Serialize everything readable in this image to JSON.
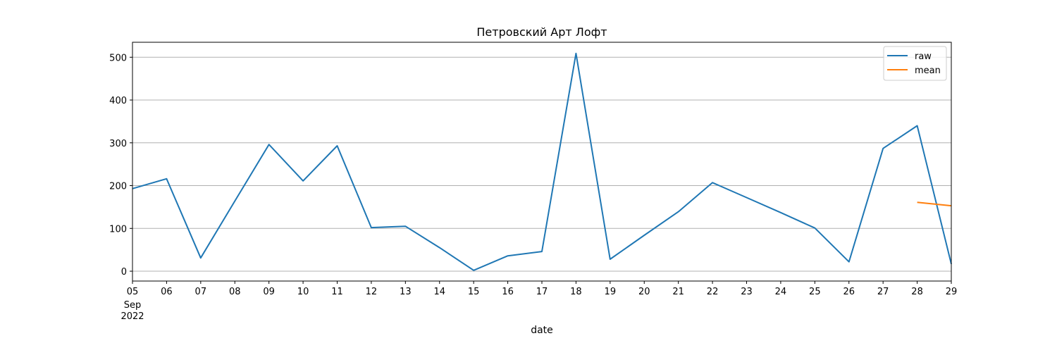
{
  "chart_data": {
    "type": "line",
    "title": "Петровский Арт Лофт",
    "xlabel": "date",
    "ylabel": "",
    "x": [
      "2022-09-05",
      "2022-09-06",
      "2022-09-07",
      "2022-09-08",
      "2022-09-09",
      "2022-09-10",
      "2022-09-11",
      "2022-09-12",
      "2022-09-13",
      "2022-09-14",
      "2022-09-15",
      "2022-09-16",
      "2022-09-17",
      "2022-09-18",
      "2022-09-19",
      "2022-09-20",
      "2022-09-21",
      "2022-09-22",
      "2022-09-23",
      "2022-09-24",
      "2022-09-25",
      "2022-09-26",
      "2022-09-27",
      "2022-09-28",
      "2022-09-29"
    ],
    "x_tick_labels": [
      "05",
      "06",
      "07",
      "08",
      "09",
      "10",
      "11",
      "12",
      "13",
      "14",
      "15",
      "16",
      "17",
      "18",
      "19",
      "20",
      "21",
      "22",
      "23",
      "24",
      "25",
      "26",
      "27",
      "28",
      "29"
    ],
    "x_first_tick_extra": [
      "Sep",
      "2022"
    ],
    "xlim": [
      "2022-09-05",
      "2022-09-29"
    ],
    "ylim": [
      -23,
      535
    ],
    "y_ticks": [
      0,
      100,
      200,
      300,
      400,
      500
    ],
    "grid": "y",
    "legend": {
      "placement": "top-right"
    },
    "series": [
      {
        "name": "raw",
        "color": "#1f77b4",
        "values": [
          193,
          216,
          31,
          164,
          296,
          211,
          293,
          102,
          105,
          55,
          2,
          36,
          46,
          509,
          28,
          84,
          139,
          207,
          172,
          137,
          101,
          22,
          287,
          340,
          17
        ]
      },
      {
        "name": "mean",
        "color": "#ff7f0e",
        "values": [
          null,
          null,
          null,
          null,
          null,
          null,
          null,
          null,
          null,
          null,
          null,
          null,
          null,
          null,
          null,
          null,
          null,
          null,
          null,
          null,
          null,
          null,
          null,
          161,
          153
        ]
      }
    ]
  }
}
